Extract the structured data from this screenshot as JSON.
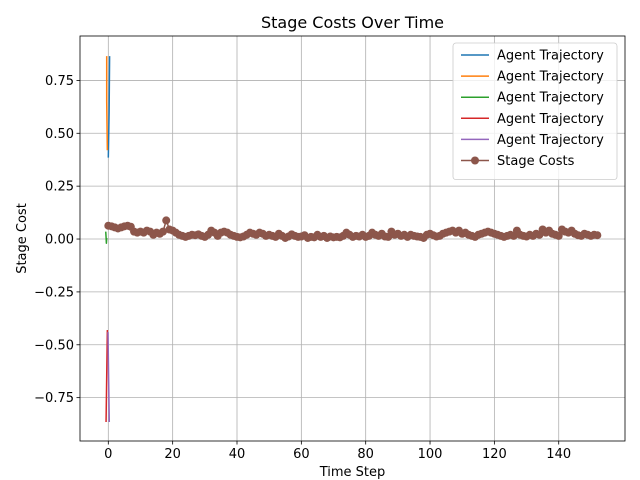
{
  "chart_data": {
    "type": "line",
    "title": "Stage Costs Over Time",
    "xlabel": "Time Step",
    "ylabel": "Stage Cost",
    "xlim": [
      -8.8,
      160.6
    ],
    "ylim": [
      -0.955,
      0.96
    ],
    "x_ticks": [
      0,
      20,
      40,
      60,
      80,
      100,
      120,
      140
    ],
    "y_ticks": [
      -0.75,
      -0.5,
      -0.25,
      0.0,
      0.25,
      0.5,
      0.75
    ],
    "y_tick_labels": [
      "−0.75",
      "−0.50",
      "−0.25",
      "0.00",
      "0.25",
      "0.50",
      "0.75"
    ],
    "grid": true,
    "legend_position": "top-right",
    "series": [
      {
        "name": "Agent Trajectory",
        "color": "#1f77b4",
        "x": [
          0.4,
          0.25,
          0.0
        ],
        "y": [
          0.865,
          0.6,
          0.385
        ]
      },
      {
        "name": "Agent Trajectory",
        "color": "#ff7f0e",
        "x": [
          -0.5,
          -0.5,
          -0.3
        ],
        "y": [
          0.865,
          0.65,
          0.42
        ]
      },
      {
        "name": "Agent Trajectory",
        "color": "#2ca02c",
        "x": [
          -0.8,
          -0.7,
          -0.6,
          -0.5
        ],
        "y": [
          0.035,
          0.01,
          -0.02,
          0.005
        ]
      },
      {
        "name": "Agent Trajectory",
        "color": "#d62728",
        "x": [
          -0.3,
          -0.5,
          -0.7
        ],
        "y": [
          -0.43,
          -0.65,
          -0.865
        ]
      },
      {
        "name": "Agent Trajectory",
        "color": "#9467bd",
        "x": [
          -0.1,
          0.1,
          0.3
        ],
        "y": [
          -0.44,
          -0.66,
          -0.865
        ]
      },
      {
        "name": "Stage Costs",
        "color": "#8c564b",
        "marker": "circle",
        "x": [
          0,
          1,
          2,
          3,
          4,
          5,
          6,
          7,
          8,
          9,
          10,
          11,
          12,
          13,
          14,
          15,
          16,
          17,
          18,
          19,
          20,
          21,
          22,
          23,
          24,
          25,
          26,
          27,
          28,
          29,
          30,
          31,
          32,
          33,
          34,
          35,
          36,
          37,
          38,
          39,
          40,
          41,
          42,
          43,
          44,
          45,
          46,
          47,
          48,
          49,
          50,
          51,
          52,
          53,
          54,
          55,
          56,
          57,
          58,
          59,
          60,
          61,
          62,
          63,
          64,
          65,
          66,
          67,
          68,
          69,
          70,
          71,
          72,
          73,
          74,
          75,
          76,
          77,
          78,
          79,
          80,
          81,
          82,
          83,
          84,
          85,
          86,
          87,
          88,
          89,
          90,
          91,
          92,
          93,
          94,
          95,
          96,
          97,
          98,
          99,
          100,
          101,
          102,
          103,
          104,
          105,
          106,
          107,
          108,
          109,
          110,
          111,
          112,
          113,
          114,
          115,
          116,
          117,
          118,
          119,
          120,
          121,
          122,
          123,
          124,
          125,
          126,
          127,
          128,
          129,
          130,
          131,
          132,
          133,
          134,
          135,
          136,
          137,
          138,
          139,
          140,
          141,
          142,
          143,
          144,
          145,
          146,
          147,
          148,
          149,
          150,
          151,
          152
        ],
        "y": [
          0.063,
          0.06,
          0.055,
          0.05,
          0.055,
          0.06,
          0.063,
          0.058,
          0.035,
          0.03,
          0.035,
          0.03,
          0.04,
          0.035,
          0.02,
          0.03,
          0.025,
          0.035,
          0.088,
          0.045,
          0.04,
          0.03,
          0.02,
          0.015,
          0.01,
          0.015,
          0.02,
          0.018,
          0.022,
          0.015,
          0.01,
          0.02,
          0.04,
          0.03,
          0.015,
          0.03,
          0.035,
          0.03,
          0.02,
          0.015,
          0.01,
          0.008,
          0.012,
          0.02,
          0.03,
          0.025,
          0.02,
          0.03,
          0.025,
          0.015,
          0.02,
          0.015,
          0.01,
          0.025,
          0.015,
          0.005,
          0.012,
          0.022,
          0.015,
          0.01,
          0.012,
          0.018,
          0.005,
          0.01,
          0.008,
          0.02,
          0.01,
          0.015,
          0.005,
          0.012,
          0.008,
          0.01,
          0.008,
          0.015,
          0.03,
          0.02,
          0.01,
          0.015,
          0.012,
          0.02,
          0.01,
          0.015,
          0.03,
          0.02,
          0.015,
          0.025,
          0.012,
          0.01,
          0.035,
          0.02,
          0.025,
          0.015,
          0.02,
          0.01,
          0.02,
          0.015,
          0.012,
          0.01,
          0.005,
          0.02,
          0.025,
          0.018,
          0.012,
          0.015,
          0.025,
          0.03,
          0.035,
          0.04,
          0.03,
          0.04,
          0.025,
          0.03,
          0.02,
          0.015,
          0.01,
          0.02,
          0.025,
          0.03,
          0.035,
          0.03,
          0.025,
          0.02,
          0.015,
          0.01,
          0.015,
          0.02,
          0.015,
          0.04,
          0.02,
          0.015,
          0.012,
          0.02,
          0.015,
          0.025,
          0.02,
          0.045,
          0.03,
          0.04,
          0.025,
          0.02,
          0.015,
          0.045,
          0.035,
          0.03,
          0.04,
          0.025,
          0.018,
          0.015,
          0.025,
          0.02,
          0.015,
          0.02,
          0.018
        ]
      }
    ]
  }
}
